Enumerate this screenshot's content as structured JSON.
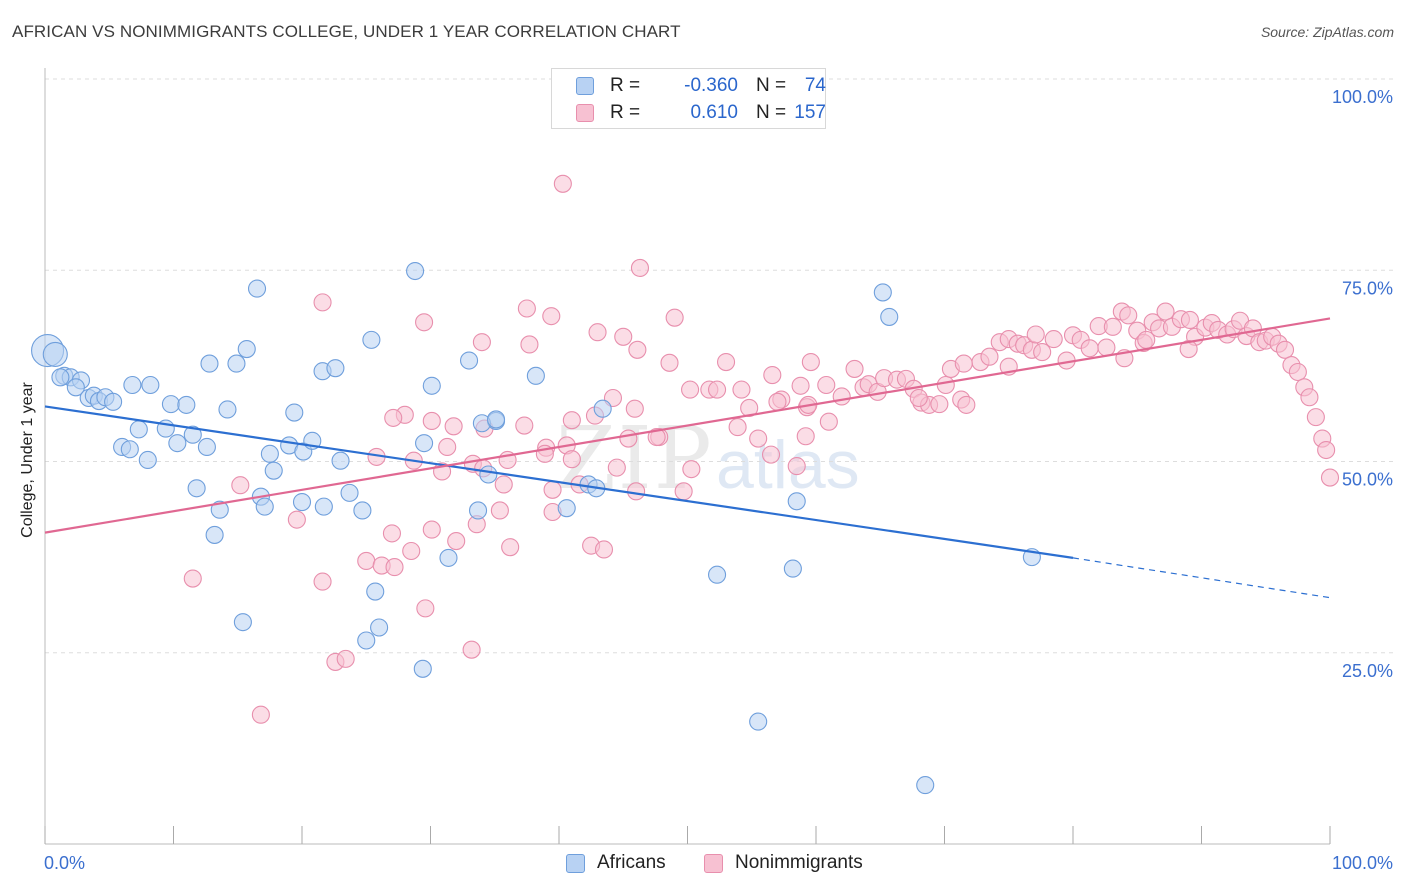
{
  "header": {
    "title": "AFRICAN VS NONIMMIGRANTS COLLEGE, UNDER 1 YEAR CORRELATION CHART",
    "source": "Source: ZipAtlas.com"
  },
  "legend": {
    "rows": [
      {
        "r_label": "R =",
        "r_value": "-0.360",
        "n_label": "N =",
        "n_value": "74"
      },
      {
        "r_label": "R =",
        "r_value": "0.610",
        "n_label": "N =",
        "n_value": "157"
      }
    ],
    "bottom": [
      "Africans",
      "Nonimmigrants"
    ]
  },
  "colors": {
    "africans_fill": "#b8d2f3",
    "africans_stroke": "#6f9fdc",
    "africans_line": "#2c6fd1",
    "nonimmigrants_fill": "#f7c1d2",
    "nonimmigrants_stroke": "#e88fad",
    "nonimmigrants_line": "#e06892",
    "tick_label": "#3b6fcf",
    "grid": "#dddddd"
  },
  "chart_data": {
    "type": "scatter",
    "title": "AFRICAN VS NONIMMIGRANTS COLLEGE, UNDER 1 YEAR CORRELATION CHART",
    "xlabel": "",
    "ylabel": "College, Under 1 year",
    "xlim": [
      0,
      100
    ],
    "ylim": [
      0,
      100
    ],
    "x_tick_labels": [
      "0.0%",
      "100.0%"
    ],
    "y_tick_labels": [
      "25.0%",
      "50.0%",
      "75.0%",
      "100.0%"
    ],
    "y_ticks": [
      25,
      50,
      75,
      100
    ],
    "grid": true,
    "legend_position": "top-center",
    "series": [
      {
        "name": "Africans",
        "R": -0.36,
        "N": 74,
        "trend": {
          "x0": 0,
          "y0": 57.2,
          "x1": 80,
          "y1": 37.4,
          "dashed_to_x": 100,
          "dashed_to_y": 32.2
        },
        "points": [
          [
            0.2,
            64.5
          ],
          [
            0.8,
            64.0
          ],
          [
            1.5,
            61.2
          ],
          [
            2.0,
            61.0
          ],
          [
            1.2,
            61.0
          ],
          [
            2.8,
            60.6
          ],
          [
            2.4,
            59.7
          ],
          [
            3.4,
            58.3
          ],
          [
            3.8,
            58.6
          ],
          [
            4.2,
            57.9
          ],
          [
            4.7,
            58.4
          ],
          [
            5.3,
            57.8
          ],
          [
            6.8,
            60.0
          ],
          [
            8.2,
            60.0
          ],
          [
            9.8,
            57.5
          ],
          [
            11.0,
            57.4
          ],
          [
            14.2,
            56.8
          ],
          [
            19.4,
            56.4
          ],
          [
            7.3,
            54.2
          ],
          [
            9.4,
            54.3
          ],
          [
            11.5,
            53.5
          ],
          [
            10.3,
            52.4
          ],
          [
            6.0,
            51.9
          ],
          [
            6.6,
            51.6
          ],
          [
            8.0,
            50.2
          ],
          [
            12.6,
            51.9
          ],
          [
            17.5,
            51.0
          ],
          [
            19.0,
            52.1
          ],
          [
            20.1,
            51.3
          ],
          [
            20.8,
            52.7
          ],
          [
            15.7,
            64.7
          ],
          [
            12.8,
            62.8
          ],
          [
            14.9,
            62.8
          ],
          [
            21.6,
            61.8
          ],
          [
            22.6,
            62.2
          ],
          [
            16.5,
            72.6
          ],
          [
            25.4,
            65.9
          ],
          [
            28.8,
            74.9
          ],
          [
            30.1,
            59.9
          ],
          [
            33.0,
            63.2
          ],
          [
            38.2,
            61.2
          ],
          [
            35.1,
            55.3
          ],
          [
            34.0,
            55.0
          ],
          [
            34.5,
            48.3
          ],
          [
            29.5,
            52.4
          ],
          [
            23.0,
            50.1
          ],
          [
            17.8,
            48.8
          ],
          [
            11.8,
            46.5
          ],
          [
            16.8,
            45.4
          ],
          [
            17.1,
            44.1
          ],
          [
            13.6,
            43.7
          ],
          [
            13.2,
            40.4
          ],
          [
            20.0,
            44.7
          ],
          [
            21.7,
            44.1
          ],
          [
            23.7,
            45.9
          ],
          [
            24.7,
            43.6
          ],
          [
            33.7,
            43.6
          ],
          [
            31.4,
            37.4
          ],
          [
            40.6,
            43.9
          ],
          [
            42.3,
            47.0
          ],
          [
            42.9,
            46.5
          ],
          [
            43.4,
            56.9
          ],
          [
            35.1,
            55.5
          ],
          [
            25.7,
            33.0
          ],
          [
            15.4,
            29.0
          ],
          [
            26.0,
            28.3
          ],
          [
            25.0,
            26.6
          ],
          [
            29.4,
            22.9
          ],
          [
            58.5,
            44.8
          ],
          [
            52.3,
            35.2
          ],
          [
            58.2,
            36.0
          ],
          [
            76.8,
            37.5
          ],
          [
            55.5,
            16.0
          ],
          [
            68.5,
            7.7
          ],
          [
            65.2,
            72.1
          ],
          [
            65.7,
            68.9
          ]
        ]
      },
      {
        "name": "Nonimmigrants",
        "R": 0.61,
        "N": 157,
        "trend": {
          "x0": 0,
          "y0": 40.7,
          "x1": 100,
          "y1": 68.7
        },
        "points": [
          [
            40.3,
            86.3
          ],
          [
            46.3,
            75.3
          ],
          [
            21.6,
            70.8
          ],
          [
            37.5,
            70.0
          ],
          [
            39.4,
            69.0
          ],
          [
            29.5,
            68.2
          ],
          [
            49.0,
            68.8
          ],
          [
            34.0,
            65.6
          ],
          [
            37.7,
            65.3
          ],
          [
            43.0,
            66.9
          ],
          [
            45.0,
            66.3
          ],
          [
            46.1,
            64.6
          ],
          [
            48.6,
            62.9
          ],
          [
            53.0,
            63.0
          ],
          [
            54.2,
            59.4
          ],
          [
            50.2,
            59.4
          ],
          [
            51.7,
            59.4
          ],
          [
            52.3,
            59.4
          ],
          [
            54.8,
            57.0
          ],
          [
            57.3,
            58.1
          ],
          [
            59.3,
            57.1
          ],
          [
            58.8,
            59.9
          ],
          [
            59.4,
            57.4
          ],
          [
            59.6,
            63.0
          ],
          [
            56.6,
            61.3
          ],
          [
            60.8,
            60.0
          ],
          [
            63.0,
            62.1
          ],
          [
            63.7,
            59.7
          ],
          [
            64.1,
            60.1
          ],
          [
            64.8,
            59.1
          ],
          [
            65.3,
            60.9
          ],
          [
            66.3,
            60.7
          ],
          [
            67.0,
            60.8
          ],
          [
            67.6,
            59.5
          ],
          [
            68.2,
            57.7
          ],
          [
            68.8,
            57.4
          ],
          [
            69.6,
            57.5
          ],
          [
            70.1,
            60.0
          ],
          [
            70.5,
            62.1
          ],
          [
            71.3,
            58.1
          ],
          [
            71.7,
            57.4
          ],
          [
            72.8,
            63.0
          ],
          [
            73.5,
            63.7
          ],
          [
            74.3,
            65.6
          ],
          [
            75.0,
            66.0
          ],
          [
            75.7,
            65.4
          ],
          [
            76.2,
            65.2
          ],
          [
            76.8,
            64.6
          ],
          [
            77.1,
            66.6
          ],
          [
            77.6,
            64.3
          ],
          [
            78.5,
            66.0
          ],
          [
            79.5,
            63.2
          ],
          [
            80.0,
            66.5
          ],
          [
            80.6,
            65.9
          ],
          [
            81.3,
            64.8
          ],
          [
            82.0,
            67.7
          ],
          [
            82.6,
            64.9
          ],
          [
            83.1,
            67.6
          ],
          [
            83.8,
            69.6
          ],
          [
            84.3,
            69.1
          ],
          [
            85.0,
            67.1
          ],
          [
            85.5,
            65.5
          ],
          [
            86.2,
            68.2
          ],
          [
            86.7,
            67.4
          ],
          [
            87.2,
            69.6
          ],
          [
            87.7,
            67.6
          ],
          [
            88.4,
            68.6
          ],
          [
            89.1,
            68.5
          ],
          [
            89.5,
            66.3
          ],
          [
            90.3,
            67.5
          ],
          [
            90.8,
            68.1
          ],
          [
            91.3,
            67.2
          ],
          [
            92.0,
            66.6
          ],
          [
            92.5,
            67.3
          ],
          [
            93.0,
            68.4
          ],
          [
            93.5,
            66.4
          ],
          [
            94.0,
            67.4
          ],
          [
            94.5,
            65.6
          ],
          [
            95.0,
            65.8
          ],
          [
            95.5,
            66.3
          ],
          [
            96.0,
            65.4
          ],
          [
            96.5,
            64.6
          ],
          [
            97.0,
            62.6
          ],
          [
            97.5,
            61.7
          ],
          [
            98.0,
            59.7
          ],
          [
            98.4,
            58.4
          ],
          [
            98.9,
            55.8
          ],
          [
            99.4,
            53.0
          ],
          [
            99.7,
            51.5
          ],
          [
            100.0,
            47.9
          ],
          [
            84.0,
            63.5
          ],
          [
            89.0,
            64.7
          ],
          [
            85.7,
            65.9
          ],
          [
            75.0,
            62.4
          ],
          [
            71.5,
            62.8
          ],
          [
            68.0,
            58.3
          ],
          [
            62.0,
            58.5
          ],
          [
            61.0,
            55.2
          ],
          [
            57.0,
            57.8
          ],
          [
            53.9,
            54.5
          ],
          [
            55.5,
            53.0
          ],
          [
            58.5,
            49.4
          ],
          [
            59.2,
            53.3
          ],
          [
            56.5,
            50.9
          ],
          [
            50.3,
            49.0
          ],
          [
            47.8,
            53.2
          ],
          [
            45.9,
            56.9
          ],
          [
            44.2,
            58.3
          ],
          [
            42.8,
            56.0
          ],
          [
            41.0,
            55.4
          ],
          [
            40.6,
            52.1
          ],
          [
            39.0,
            51.8
          ],
          [
            37.3,
            54.7
          ],
          [
            36.0,
            50.2
          ],
          [
            34.2,
            54.3
          ],
          [
            33.3,
            49.7
          ],
          [
            31.8,
            54.6
          ],
          [
            30.1,
            55.3
          ],
          [
            28.0,
            56.1
          ],
          [
            27.1,
            55.7
          ],
          [
            25.8,
            50.6
          ],
          [
            28.7,
            50.1
          ],
          [
            30.9,
            48.7
          ],
          [
            31.3,
            51.9
          ],
          [
            34.1,
            49.1
          ],
          [
            35.7,
            47.0
          ],
          [
            35.4,
            43.6
          ],
          [
            39.5,
            43.4
          ],
          [
            41.6,
            47.0
          ],
          [
            45.4,
            53.0
          ],
          [
            47.6,
            53.2
          ],
          [
            46.0,
            46.1
          ],
          [
            41.0,
            50.3
          ],
          [
            44.5,
            49.2
          ],
          [
            38.9,
            51.0
          ],
          [
            25.0,
            37.0
          ],
          [
            26.2,
            36.4
          ],
          [
            27.2,
            36.2
          ],
          [
            27.0,
            40.6
          ],
          [
            28.5,
            38.3
          ],
          [
            30.1,
            41.1
          ],
          [
            32.0,
            39.6
          ],
          [
            33.6,
            41.8
          ],
          [
            36.2,
            38.8
          ],
          [
            39.5,
            46.3
          ],
          [
            42.5,
            39.0
          ],
          [
            43.5,
            38.5
          ],
          [
            49.7,
            46.1
          ],
          [
            15.2,
            46.9
          ],
          [
            19.6,
            42.4
          ],
          [
            21.6,
            34.3
          ],
          [
            11.5,
            34.7
          ],
          [
            29.6,
            30.8
          ],
          [
            33.2,
            25.4
          ],
          [
            22.6,
            23.8
          ],
          [
            23.4,
            24.2
          ],
          [
            16.8,
            16.9
          ]
        ]
      }
    ]
  }
}
